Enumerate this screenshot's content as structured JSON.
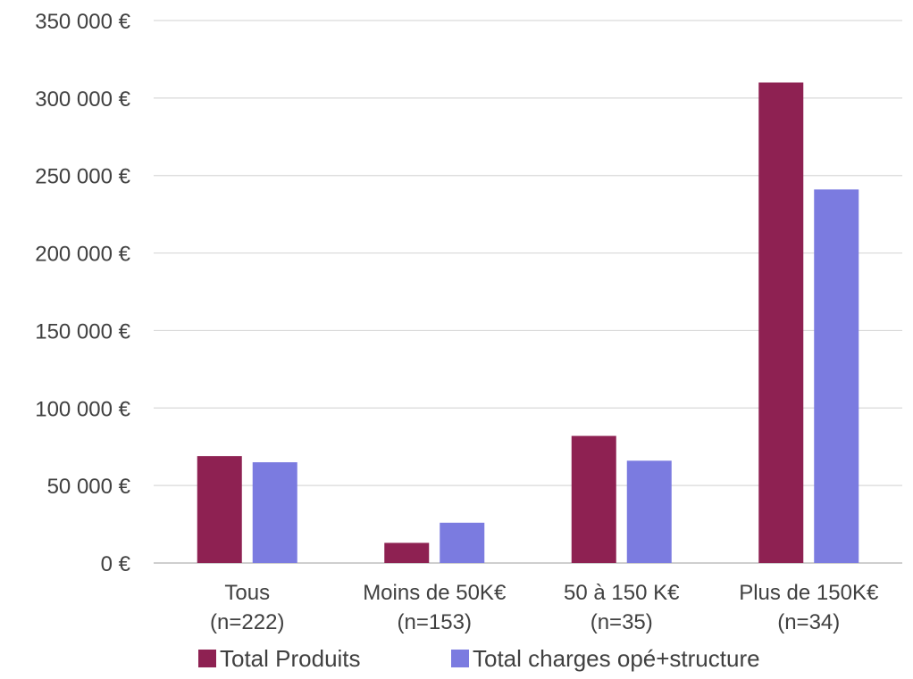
{
  "chart_data": {
    "type": "bar",
    "categories": [
      [
        "Tous",
        "(n=222)"
      ],
      [
        "Moins de 50K€",
        "(n=153)"
      ],
      [
        "50 à 150 K€",
        "(n=35)"
      ],
      [
        "Plus de 150K€",
        "(n=34)"
      ]
    ],
    "series": [
      {
        "name": "Total Produits",
        "color": "#8E2152",
        "values": [
          69000,
          13000,
          82000,
          310000
        ]
      },
      {
        "name": "Total charges opé+structure",
        "color": "#7B7BE0",
        "values": [
          65000,
          26000,
          66000,
          241000
        ]
      }
    ],
    "ylim": [
      0,
      350000
    ],
    "yticks": [
      0,
      50000,
      100000,
      150000,
      200000,
      250000,
      300000,
      350000
    ],
    "ytick_labels": [
      "0 €",
      "50 000 €",
      "100 000 €",
      "150 000 €",
      "200 000 €",
      "250 000 €",
      "300 000 €",
      "350 000 €"
    ],
    "grid": true,
    "legend_position": "bottom"
  }
}
